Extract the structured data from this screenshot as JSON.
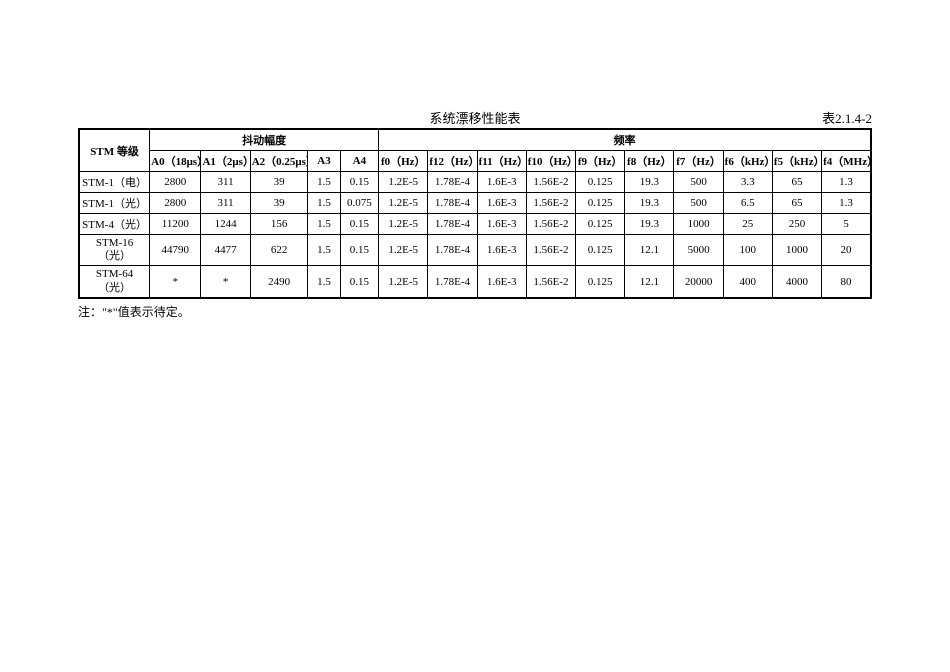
{
  "title": "系统漂移性能表",
  "table_number": "表2.1.4-2",
  "headers": {
    "stm": "STM\n等级",
    "jitter": "抖动幅度",
    "freq": "频率",
    "a0": "A0（18μs）",
    "a1": "A1（2μs）",
    "a2": "A2（0.25μs）",
    "a3": "A3",
    "a4": "A4",
    "f0": "f0（Hz）",
    "f12": "f12（Hz）",
    "f11": "f11（Hz）",
    "f10": "f10（Hz）",
    "f9": "f9（Hz）",
    "f8": "f8（Hz）",
    "f7": "f7（Hz）",
    "f6": "f6（kHz）",
    "f5": "f5（kHz）",
    "f4": "f4（MHz）"
  },
  "rows": [
    {
      "stm": "STM-1（电）",
      "a0": "2800",
      "a1": "311",
      "a2": "39",
      "a3": "1.5",
      "a4": "0.15",
      "f0": "1.2E-5",
      "f12": "1.78E-4",
      "f11": "1.6E-3",
      "f10": "1.56E-2",
      "f9": "0.125",
      "f8": "19.3",
      "f7": "500",
      "f6": "3.3",
      "f5": "65",
      "f4": "1.3"
    },
    {
      "stm": "STM-1（光）",
      "a0": "2800",
      "a1": "311",
      "a2": "39",
      "a3": "1.5",
      "a4": "0.075",
      "f0": "1.2E-5",
      "f12": "1.78E-4",
      "f11": "1.6E-3",
      "f10": "1.56E-2",
      "f9": "0.125",
      "f8": "19.3",
      "f7": "500",
      "f6": "6.5",
      "f5": "65",
      "f4": "1.3"
    },
    {
      "stm": "STM-4（光）",
      "a0": "11200",
      "a1": "1244",
      "a2": "156",
      "a3": "1.5",
      "a4": "0.15",
      "f0": "1.2E-5",
      "f12": "1.78E-4",
      "f11": "1.6E-3",
      "f10": "1.56E-2",
      "f9": "0.125",
      "f8": "19.3",
      "f7": "1000",
      "f6": "25",
      "f5": "250",
      "f4": "5"
    },
    {
      "stm": "STM-16（光）",
      "a0": "44790",
      "a1": "4477",
      "a2": "622",
      "a3": "1.5",
      "a4": "0.15",
      "f0": "1.2E-5",
      "f12": "1.78E-4",
      "f11": "1.6E-3",
      "f10": "1.56E-2",
      "f9": "0.125",
      "f8": "12.1",
      "f7": "5000",
      "f6": "100",
      "f5": "1000",
      "f4": "20"
    },
    {
      "stm": "STM-64（光）",
      "a0": "*",
      "a1": "*",
      "a2": "2490",
      "a3": "1.5",
      "a4": "0.15",
      "f0": "1.2E-5",
      "f12": "1.78E-4",
      "f11": "1.6E-3",
      "f10": "1.56E-2",
      "f9": "0.125",
      "f8": "12.1",
      "f7": "20000",
      "f6": "400",
      "f5": "4000",
      "f4": "80"
    }
  ],
  "note": "注：\"*\"值表示待定。",
  "style": {
    "background_color": "#ffffff",
    "text_color": "#000000",
    "border_color": "#000000",
    "font_family": "SimSun",
    "title_fontsize": 13,
    "cell_fontsize": 11,
    "note_fontsize": 12,
    "outer_border_width": 2,
    "inner_border_width": 1
  }
}
